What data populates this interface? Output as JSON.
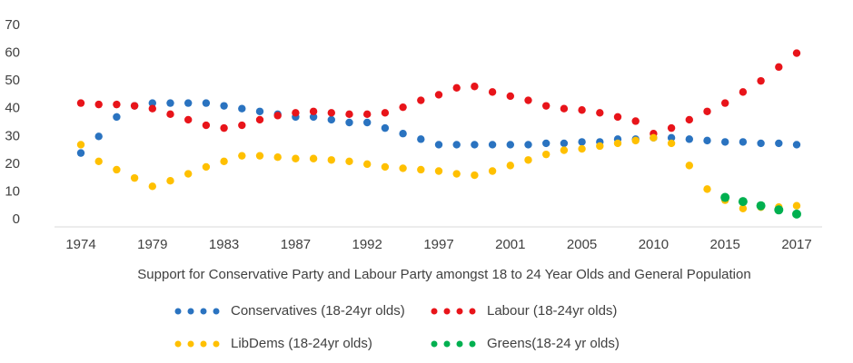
{
  "chart_data": {
    "type": "dotline",
    "x_label": "Support for Conservative Party and Labour Party amongst 18 to 24 Year Olds and General Population",
    "categories": [
      "1974",
      null,
      null,
      null,
      "1979",
      null,
      null,
      null,
      "1983",
      null,
      null,
      null,
      "1987",
      null,
      null,
      null,
      "1992",
      null,
      null,
      null,
      "1997",
      null,
      null,
      null,
      "2001",
      null,
      null,
      null,
      "2005",
      null,
      null,
      null,
      "2010",
      null,
      null,
      null,
      "2015",
      null,
      null,
      null,
      "2017"
    ],
    "ylim": [
      0,
      70
    ],
    "yticks": [
      0,
      10,
      20,
      30,
      40,
      50,
      60,
      70
    ],
    "grid": false,
    "series": [
      {
        "name": "Conservatives (18-24yr olds)",
        "color": "#2a73c0",
        "values": [
          24,
          30,
          37,
          41,
          42,
          42,
          42,
          42,
          41,
          40,
          39,
          38,
          37,
          37,
          36,
          35,
          35,
          33,
          31,
          29,
          27,
          27,
          27,
          27,
          27,
          27,
          27.5,
          27.5,
          28,
          28,
          29,
          29,
          29.5,
          29.5,
          29,
          28.5,
          28,
          28,
          27.5,
          27.5,
          27
        ]
      },
      {
        "name": "Labour (18-24yr olds)",
        "color": "#e8141a",
        "values": [
          42,
          41.5,
          41.5,
          41,
          40,
          38,
          36,
          34,
          33,
          34,
          36,
          37.5,
          38.5,
          39,
          38.5,
          38,
          38,
          38.5,
          40.5,
          43,
          45,
          47.5,
          48,
          46,
          44.5,
          43,
          41,
          40,
          39.5,
          38.5,
          37,
          35.5,
          31,
          33,
          36,
          39,
          42,
          46,
          50,
          55,
          60
        ]
      },
      {
        "name": "LibDems (18-24yr olds)",
        "color": "#ffc000",
        "values": [
          27,
          21,
          18,
          15,
          12,
          14,
          16.5,
          19,
          21,
          23,
          23,
          22.5,
          22,
          22,
          21.5,
          21,
          20,
          19,
          18.5,
          18,
          17.5,
          16.5,
          16,
          17.5,
          19.5,
          21.5,
          23.5,
          25,
          25.5,
          26.5,
          27.5,
          28.5,
          29.5,
          27.5,
          19.5,
          11,
          7,
          4,
          4.5,
          4.5,
          5
        ]
      },
      {
        "name": "Greens(18-24 yr olds)",
        "color": "#00b050",
        "values": [
          null,
          null,
          null,
          null,
          null,
          null,
          null,
          null,
          null,
          null,
          null,
          null,
          null,
          null,
          null,
          null,
          null,
          null,
          null,
          null,
          null,
          null,
          null,
          null,
          null,
          null,
          null,
          null,
          null,
          null,
          null,
          null,
          null,
          null,
          null,
          null,
          8,
          6.5,
          5,
          3.5,
          2
        ]
      }
    ]
  }
}
